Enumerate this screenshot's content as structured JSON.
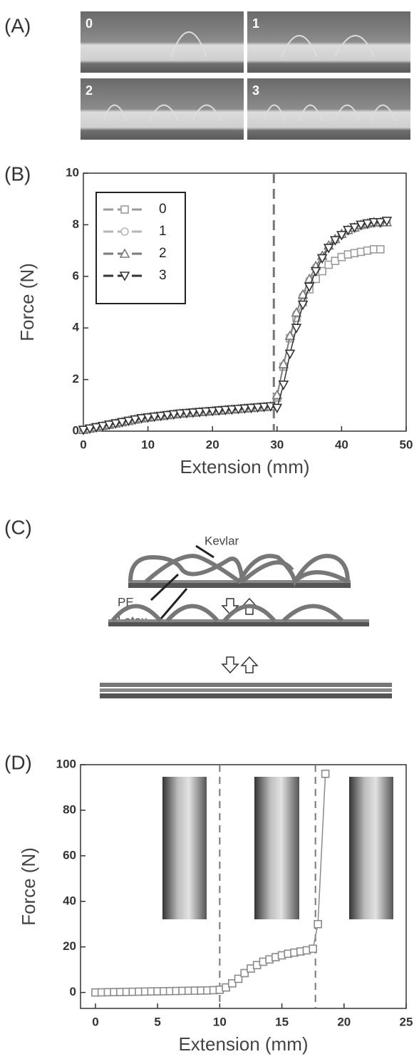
{
  "panels": [
    "(A)",
    "(B)",
    "(C)",
    "(D)"
  ],
  "photos": [
    "0",
    "1",
    "2",
    "3"
  ],
  "diagram": {
    "labels": [
      "Kevlar",
      "PE",
      "Latex"
    ]
  },
  "chart_data": [
    {
      "type": "line",
      "xlabel": "Extension (mm)",
      "ylabel": "Force (N)",
      "x": [
        0,
        1,
        2,
        3,
        4,
        5,
        6,
        7,
        8,
        9,
        10,
        11,
        12,
        13,
        14,
        15,
        16,
        17,
        18,
        19,
        20,
        21,
        22,
        23,
        24,
        25,
        26,
        27,
        28,
        29,
        30,
        31,
        32,
        33,
        34,
        35,
        36,
        37,
        38,
        39,
        40,
        41,
        42,
        43,
        44,
        45,
        46,
        47
      ],
      "series": [
        {
          "name": "0",
          "color": "#9a9a9a",
          "marker": "square",
          "values": [
            0.05,
            0.1,
            0.15,
            0.2,
            0.25,
            0.3,
            0.35,
            0.4,
            0.45,
            0.5,
            0.53,
            0.56,
            0.59,
            0.62,
            0.65,
            0.68,
            0.7,
            0.72,
            0.74,
            0.76,
            0.78,
            0.8,
            0.82,
            0.84,
            0.86,
            0.88,
            0.9,
            0.92,
            0.94,
            0.96,
            1.3,
            2.5,
            3.6,
            4.4,
            5.0,
            5.5,
            5.9,
            6.2,
            6.45,
            6.6,
            6.75,
            6.85,
            6.9,
            6.95,
            7.0,
            7.05,
            7.05,
            null
          ]
        },
        {
          "name": "1",
          "color": "#b5b5b5",
          "marker": "circle",
          "values": [
            0.05,
            0.1,
            0.15,
            0.2,
            0.25,
            0.3,
            0.35,
            0.4,
            0.45,
            0.5,
            0.53,
            0.56,
            0.59,
            0.62,
            0.65,
            0.68,
            0.7,
            0.72,
            0.74,
            0.76,
            0.78,
            0.8,
            0.82,
            0.84,
            0.86,
            0.88,
            0.9,
            0.92,
            0.94,
            0.96,
            1.35,
            2.55,
            3.65,
            4.55,
            5.25,
            5.85,
            6.35,
            6.75,
            7.15,
            7.4,
            7.6,
            7.75,
            7.85,
            7.95,
            8.0,
            8.05,
            8.05,
            8.1
          ]
        },
        {
          "name": "2",
          "color": "#7a7a7a",
          "marker": "triangle-up",
          "values": [
            0.05,
            0.1,
            0.15,
            0.2,
            0.25,
            0.3,
            0.35,
            0.4,
            0.45,
            0.5,
            0.53,
            0.56,
            0.59,
            0.62,
            0.65,
            0.68,
            0.7,
            0.72,
            0.74,
            0.76,
            0.78,
            0.8,
            0.82,
            0.84,
            0.86,
            0.88,
            0.9,
            0.92,
            0.94,
            0.96,
            1.4,
            2.6,
            3.7,
            4.6,
            5.3,
            5.9,
            6.4,
            6.8,
            7.2,
            7.45,
            7.65,
            7.8,
            7.9,
            8.0,
            8.05,
            8.1,
            8.1,
            8.1
          ]
        },
        {
          "name": "3",
          "color": "#333333",
          "marker": "triangle-down",
          "values": [
            0.05,
            0.1,
            0.15,
            0.2,
            0.25,
            0.3,
            0.35,
            0.4,
            0.45,
            0.5,
            0.53,
            0.56,
            0.59,
            0.62,
            0.65,
            0.68,
            0.7,
            0.72,
            0.74,
            0.76,
            0.78,
            0.8,
            0.82,
            0.84,
            0.86,
            0.88,
            0.9,
            0.92,
            0.94,
            0.96,
            0.9,
            1.8,
            3.0,
            4.0,
            4.9,
            5.6,
            6.2,
            6.7,
            7.1,
            7.4,
            7.6,
            7.8,
            7.9,
            8.0,
            8.05,
            8.1,
            8.1,
            8.15
          ]
        }
      ],
      "xlim": [
        0,
        50
      ],
      "xticks": [
        0,
        10,
        20,
        30,
        40,
        50
      ],
      "ylim": [
        0,
        10
      ],
      "yticks": [
        0,
        2,
        4,
        6,
        8,
        10
      ],
      "vlines": [
        29.5
      ],
      "vline_color": "#777777",
      "legend": "upper left"
    },
    {
      "type": "line",
      "xlabel": "Extension (mm)",
      "ylabel": "Force (N)",
      "x": [
        0,
        0.5,
        1,
        1.5,
        2,
        2.5,
        3,
        3.5,
        4,
        4.5,
        5,
        5.5,
        6,
        6.5,
        7,
        7.5,
        8,
        8.5,
        9,
        9.5,
        10,
        10.5,
        11,
        11.5,
        12,
        12.5,
        13,
        13.5,
        14,
        14.5,
        15,
        15.5,
        16,
        16.5,
        17,
        17.5,
        17.9,
        18.5
      ],
      "values": [
        0,
        0.05,
        0.1,
        0.15,
        0.2,
        0.25,
        0.3,
        0.35,
        0.4,
        0.45,
        0.5,
        0.55,
        0.6,
        0.65,
        0.7,
        0.75,
        0.8,
        0.85,
        0.9,
        1.0,
        1.2,
        2.2,
        4,
        6,
        8.5,
        10.5,
        12,
        13.5,
        14.5,
        15.5,
        16.3,
        17,
        17.5,
        18,
        18.5,
        19.2,
        30,
        96
      ],
      "color": "#8a8a8a",
      "marker": "square",
      "xlim": [
        -1.2,
        25
      ],
      "xticks": [
        0,
        5,
        10,
        15,
        20,
        25
      ],
      "ylim": [
        -7,
        100
      ],
      "yticks": [
        0,
        20,
        40,
        60,
        80,
        100
      ],
      "vlines": [
        10,
        17.7
      ],
      "vline_color": "#777777"
    }
  ]
}
